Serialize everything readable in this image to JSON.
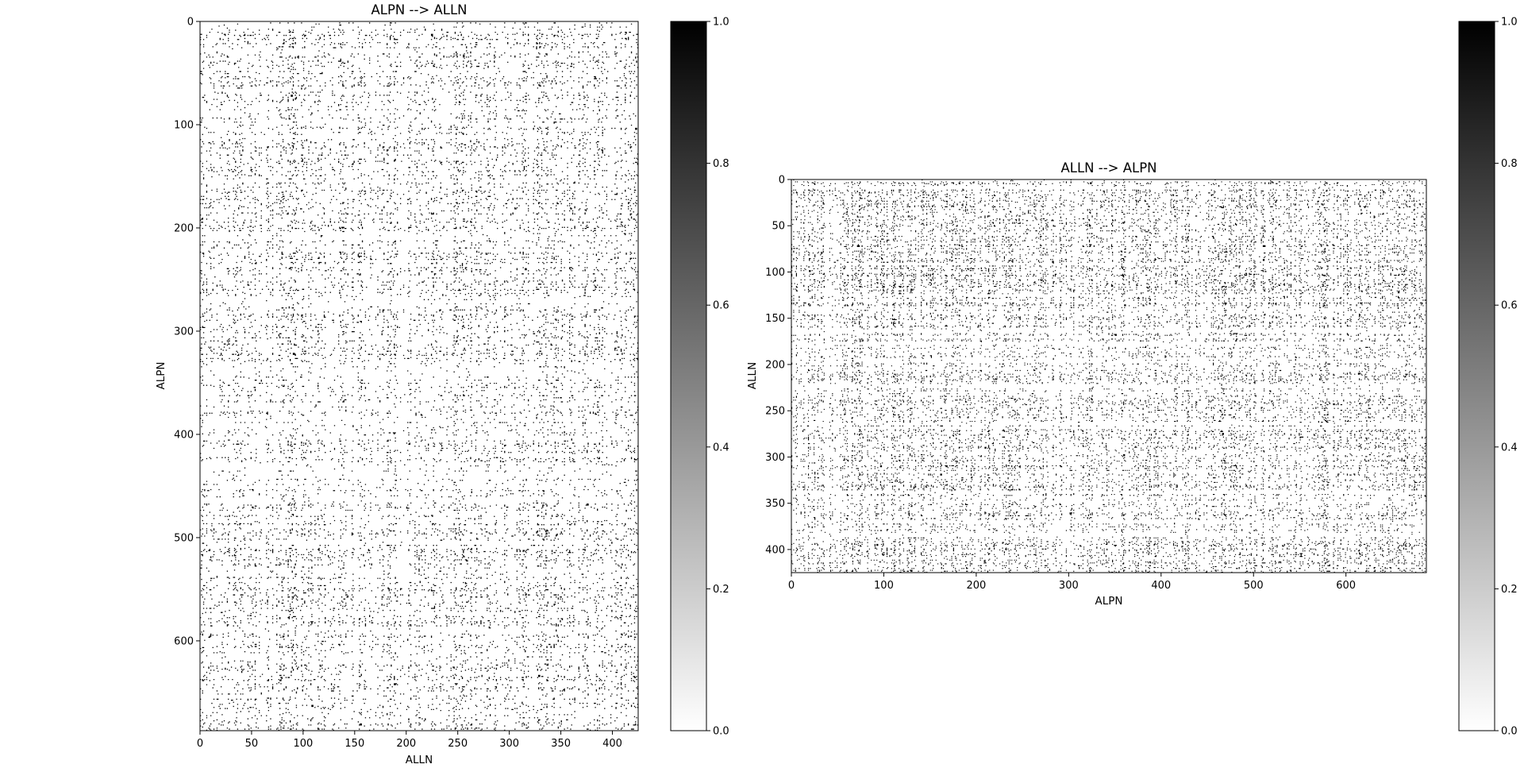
{
  "chart_data": [
    {
      "type": "heatmap",
      "title": "ALPN --> ALLN",
      "xlabel": "ALLN",
      "ylabel": "ALPN",
      "shape": {
        "rows": 687,
        "cols": 425
      },
      "xlim": [
        0,
        425
      ],
      "ylim": [
        687,
        0
      ],
      "xticks": [
        0,
        50,
        100,
        150,
        200,
        250,
        300,
        350,
        400
      ],
      "yticks": [
        0,
        100,
        200,
        300,
        400,
        500,
        600
      ],
      "colormap": "gray_r",
      "value_range": [
        0,
        1
      ],
      "density_estimate": 0.07,
      "colorbar": {
        "ticks": [
          "0.0",
          "0.2",
          "0.4",
          "0.6",
          "0.8",
          "1.0"
        ],
        "range": [
          0,
          1
        ]
      }
    },
    {
      "type": "heatmap",
      "title": "ALLN --> ALPN",
      "xlabel": "ALPN",
      "ylabel": "ALLN",
      "shape": {
        "rows": 425,
        "cols": 687
      },
      "xlim": [
        0,
        687
      ],
      "ylim": [
        425,
        0
      ],
      "xticks": [
        0,
        100,
        200,
        300,
        400,
        500,
        600
      ],
      "yticks": [
        0,
        50,
        100,
        150,
        200,
        250,
        300,
        350,
        400
      ],
      "colormap": "gray_r",
      "value_range": [
        0,
        1
      ],
      "density_estimate": 0.1,
      "colorbar": {
        "ticks": [
          "0.0",
          "0.2",
          "0.4",
          "0.6",
          "0.8",
          "1.0"
        ],
        "range": [
          0,
          1
        ]
      }
    }
  ]
}
